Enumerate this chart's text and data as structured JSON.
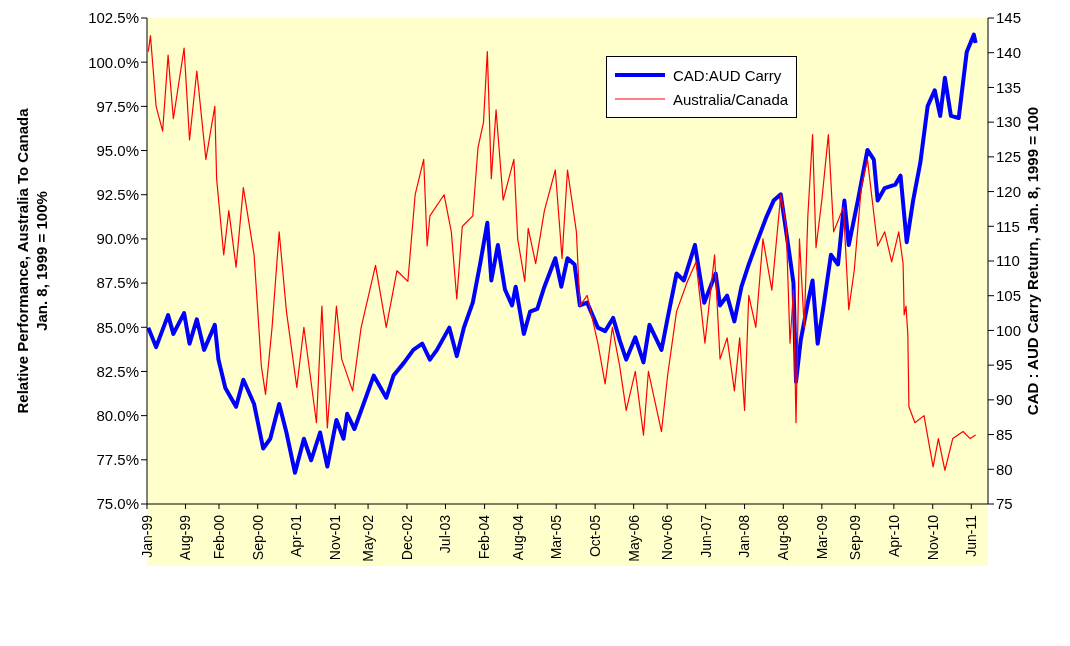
{
  "chart_data": {
    "type": "line",
    "ylabel": "Relative Performance, Australia To Canada\nJan. 8, 1999 = 100%",
    "y2label": "CAD : AUD Carry Return, Jan. 8, 1999 = 100",
    "legend": "top right",
    "marker": "none",
    "line_style": "solid",
    "grid": false,
    "xlim": [
      "1999-01-01",
      "2011-09-01"
    ],
    "xticks": [
      {
        "value": "1999-01-01",
        "label": "Jan-99"
      },
      {
        "value": "1999-08-01",
        "label": "Aug-99"
      },
      {
        "value": "2000-02-01",
        "label": "Feb-00"
      },
      {
        "value": "2000-09-01",
        "label": "Sep-00"
      },
      {
        "value": "2001-04-01",
        "label": "Apr-01"
      },
      {
        "value": "2001-11-01",
        "label": "Nov-01"
      },
      {
        "value": "2002-05-01",
        "label": "May-02"
      },
      {
        "value": "2002-12-01",
        "label": "Dec-02"
      },
      {
        "value": "2003-07-01",
        "label": "Jul-03"
      },
      {
        "value": "2004-02-01",
        "label": "Feb-04"
      },
      {
        "value": "2004-08-01",
        "label": "Aug-04"
      },
      {
        "value": "2005-03-01",
        "label": "Mar-05"
      },
      {
        "value": "2005-10-01",
        "label": "Oct-05"
      },
      {
        "value": "2006-05-01",
        "label": "May-06"
      },
      {
        "value": "2006-11-01",
        "label": "Nov-06"
      },
      {
        "value": "2007-06-01",
        "label": "Jun-07"
      },
      {
        "value": "2008-01-01",
        "label": "Jan-08"
      },
      {
        "value": "2008-08-01",
        "label": "Aug-08"
      },
      {
        "value": "2009-03-01",
        "label": "Mar-09"
      },
      {
        "value": "2009-09-01",
        "label": "Sep-09"
      },
      {
        "value": "2010-04-01",
        "label": "Apr-10"
      },
      {
        "value": "2010-11-01",
        "label": "Nov-10"
      },
      {
        "value": "2011-06-01",
        "label": "Jun-11"
      }
    ],
    "ylim": [
      75,
      102.5
    ],
    "yticks": [
      {
        "value": 75,
        "label": "75.0%"
      },
      {
        "value": 77.5,
        "label": "77.5%"
      },
      {
        "value": 80,
        "label": "80.0%"
      },
      {
        "value": 82.5,
        "label": "82.5%"
      },
      {
        "value": 85,
        "label": "85.0%"
      },
      {
        "value": 87.5,
        "label": "87.5%"
      },
      {
        "value": 90,
        "label": "90.0%"
      },
      {
        "value": 92.5,
        "label": "92.5%"
      },
      {
        "value": 95,
        "label": "95.0%"
      },
      {
        "value": 97.5,
        "label": "97.5%"
      },
      {
        "value": 100,
        "label": "100.0%"
      },
      {
        "value": 102.5,
        "label": "102.5%"
      }
    ],
    "y2lim": [
      75,
      145
    ],
    "y2ticks": [
      75,
      80,
      85,
      90,
      95,
      100,
      105,
      110,
      115,
      120,
      125,
      130,
      135,
      140,
      145
    ],
    "series": [
      {
        "name": "CAD:AUD Carry",
        "color": "#0000ff",
        "axis": "y2",
        "x": [
          "1999-01-08",
          "1999-02-20",
          "1999-04-27",
          "1999-05-26",
          "1999-07-24",
          "1999-08-23",
          "1999-10-02",
          "1999-11-11",
          "2000-01-09",
          "2000-01-29",
          "2000-03-07",
          "2000-05-05",
          "2000-06-14",
          "2000-08-12",
          "2000-10-01",
          "2000-11-09",
          "2000-12-28",
          "2001-02-06",
          "2001-03-25",
          "2001-05-13",
          "2001-06-22",
          "2001-08-10",
          "2001-09-19",
          "2001-11-08",
          "2001-12-17",
          "2002-01-06",
          "2002-02-15",
          "2002-04-13",
          "2002-06-01",
          "2002-08-09",
          "2002-09-18",
          "2002-11-16",
          "2003-01-05",
          "2003-02-23",
          "2003-04-06",
          "2003-05-15",
          "2003-07-22",
          "2003-09-01",
          "2003-10-10",
          "2003-11-28",
          "2004-01-07",
          "2004-02-16",
          "2004-03-09",
          "2004-04-14",
          "2004-05-23",
          "2004-07-01",
          "2004-07-21",
          "2004-09-04",
          "2004-10-08",
          "2004-11-17",
          "2004-12-26",
          "2005-02-24",
          "2005-03-29",
          "2005-05-02",
          "2005-06-10",
          "2005-07-09",
          "2005-08-18",
          "2005-10-16",
          "2005-11-25",
          "2006-01-08",
          "2006-02-13",
          "2006-03-21",
          "2006-05-10",
          "2006-06-24",
          "2006-07-27",
          "2006-10-01",
          "2006-11-04",
          "2006-12-23",
          "2007-02-01",
          "2007-04-03",
          "2007-05-24",
          "2007-07-26",
          "2007-08-19",
          "2007-09-27",
          "2007-11-06",
          "2007-12-15",
          "2008-01-24",
          "2008-03-03",
          "2008-05-01",
          "2008-06-09",
          "2008-07-18",
          "2008-09-07",
          "2008-09-26",
          "2008-10-10",
          "2008-11-05",
          "2008-12-14",
          "2009-01-09",
          "2009-02-06",
          "2009-03-11",
          "2009-04-20",
          "2009-05-29",
          "2009-07-03",
          "2009-07-27",
          "2009-09-15",
          "2009-11-07",
          "2009-12-12",
          "2010-01-02",
          "2010-02-10",
          "2010-04-09",
          "2010-05-08",
          "2010-06-11",
          "2010-07-16",
          "2010-08-25",
          "2010-10-04",
          "2010-11-12",
          "2010-12-12",
          "2011-01-07",
          "2011-02-09",
          "2011-03-24",
          "2011-05-07",
          "2011-06-15",
          "2011-06-25"
        ],
        "values": [
          100.4,
          97.6,
          102.2,
          99.5,
          102.5,
          98.1,
          101.6,
          97.2,
          100.8,
          95.8,
          91.7,
          89.0,
          92.9,
          89.4,
          83.0,
          84.4,
          89.4,
          85.3,
          79.5,
          84.4,
          81.3,
          85.3,
          80.4,
          87.1,
          84.4,
          88.0,
          85.8,
          89.9,
          93.5,
          90.3,
          93.5,
          95.4,
          97.2,
          98.1,
          95.8,
          97.2,
          100.4,
          96.3,
          100.4,
          104.0,
          109.5,
          115.5,
          107.2,
          112.3,
          105.9,
          103.6,
          106.3,
          99.5,
          102.7,
          103.1,
          106.3,
          110.4,
          106.3,
          110.4,
          109.5,
          103.6,
          104.0,
          100.4,
          99.9,
          101.8,
          98.6,
          95.8,
          99.0,
          95.4,
          100.8,
          97.2,
          101.8,
          108.2,
          107.2,
          112.3,
          104.0,
          108.2,
          103.6,
          105.0,
          101.3,
          106.3,
          109.5,
          112.3,
          116.4,
          118.7,
          119.6,
          110.4,
          106.8,
          92.6,
          98.6,
          104.0,
          107.2,
          98.1,
          103.6,
          110.9,
          109.5,
          118.7,
          112.3,
          118.7,
          126.0,
          124.6,
          118.7,
          120.5,
          121.0,
          122.3,
          112.7,
          118.7,
          124.2,
          132.3,
          134.6,
          130.9,
          136.4,
          130.9,
          130.6,
          140.1,
          142.6,
          141.4
        ]
      },
      {
        "name": "Australia/Canada",
        "color": "#ff0000",
        "x": [
          "1999-01-08",
          "1999-01-20",
          "1999-02-20",
          "1999-03-28",
          "1999-04-27",
          "1999-05-26",
          "1999-07-24",
          "1999-08-23",
          "1999-10-02",
          "1999-11-21",
          "2000-01-09",
          "2000-01-19",
          "2000-02-27",
          "2000-03-26",
          "2000-05-05",
          "2000-06-14",
          "2000-08-12",
          "2000-09-21",
          "2000-10-14",
          "2000-11-19",
          "2000-12-28",
          "2001-02-06",
          "2001-04-04",
          "2001-05-13",
          "2001-07-21",
          "2001-08-20",
          "2001-09-19",
          "2001-11-08",
          "2001-12-07",
          "2002-02-05",
          "2002-03-24",
          "2002-06-11",
          "2002-08-09",
          "2002-10-07",
          "2002-12-06",
          "2003-01-15",
          "2003-03-03",
          "2003-03-22",
          "2003-04-06",
          "2003-06-23",
          "2003-08-02",
          "2003-09-01",
          "2003-10-01",
          "2003-11-28",
          "2003-12-27",
          "2004-01-26",
          "2004-02-16",
          "2004-03-09",
          "2004-04-04",
          "2004-05-13",
          "2004-07-11",
          "2004-08-01",
          "2004-09-09",
          "2004-09-28",
          "2004-11-08",
          "2004-12-26",
          "2005-02-24",
          "2005-04-02",
          "2005-05-02",
          "2005-06-20",
          "2005-07-09",
          "2005-08-18",
          "2005-10-16",
          "2005-11-25",
          "2006-01-04",
          "2006-02-13",
          "2006-03-21",
          "2006-05-10",
          "2006-06-24",
          "2006-07-21",
          "2006-10-01",
          "2006-11-04",
          "2006-12-23",
          "2007-02-21",
          "2007-04-09",
          "2007-05-28",
          "2007-07-20",
          "2007-08-19",
          "2007-09-27",
          "2007-11-06",
          "2007-12-05",
          "2008-01-01",
          "2008-01-24",
          "2008-03-03",
          "2008-04-11",
          "2008-05-30",
          "2008-07-18",
          "2008-08-17",
          "2008-09-07",
          "2008-09-26",
          "2008-10-10",
          "2008-10-29",
          "2008-11-24",
          "2008-12-14",
          "2009-01-09",
          "2009-01-28",
          "2009-03-01",
          "2009-04-06",
          "2009-05-05",
          "2009-06-28",
          "2009-07-27",
          "2009-08-26",
          "2009-10-04",
          "2009-11-07",
          "2009-12-03",
          "2010-01-02",
          "2010-02-10",
          "2010-03-20",
          "2010-04-28",
          "2010-05-22",
          "2010-05-28",
          "2010-06-07",
          "2010-06-17",
          "2010-06-23",
          "2010-07-26",
          "2010-09-14",
          "2010-11-03",
          "2010-12-02",
          "2011-01-07",
          "2011-02-19",
          "2011-04-17",
          "2011-05-26",
          "2011-06-25"
        ],
        "values": [
          100.6,
          101.5,
          97.5,
          96.1,
          100.4,
          96.8,
          100.8,
          95.6,
          99.5,
          94.5,
          97.5,
          93.4,
          89.1,
          91.6,
          88.4,
          92.9,
          89.1,
          82.8,
          81.2,
          85.0,
          90.4,
          85.9,
          81.6,
          85.0,
          79.6,
          86.2,
          79.3,
          86.2,
          83.2,
          81.4,
          85.0,
          88.5,
          85.0,
          88.2,
          87.6,
          92.5,
          94.5,
          89.6,
          91.3,
          92.5,
          90.4,
          86.6,
          90.7,
          91.3,
          95.2,
          96.6,
          100.6,
          93.4,
          97.3,
          92.2,
          94.5,
          90.0,
          87.6,
          90.6,
          88.6,
          91.6,
          93.9,
          88.9,
          93.9,
          90.4,
          86.2,
          86.8,
          84.1,
          81.8,
          85.0,
          82.8,
          80.3,
          82.5,
          78.9,
          82.5,
          79.1,
          82.3,
          85.9,
          87.6,
          88.7,
          84.1,
          89.1,
          83.2,
          84.4,
          81.4,
          84.4,
          80.3,
          86.8,
          85.0,
          90.0,
          87.1,
          92.5,
          90.7,
          84.1,
          87.1,
          79.6,
          90.0,
          85.0,
          91.3,
          95.9,
          89.5,
          92.2,
          95.9,
          90.4,
          91.8,
          86.0,
          88.2,
          92.9,
          94.5,
          92.2,
          89.6,
          90.4,
          88.7,
          90.4,
          88.6,
          85.7,
          86.2,
          84.6,
          80.5,
          79.6,
          80.0,
          77.1,
          78.7,
          76.9,
          78.7,
          79.1,
          78.7,
          78.9
        ]
      }
    ]
  }
}
